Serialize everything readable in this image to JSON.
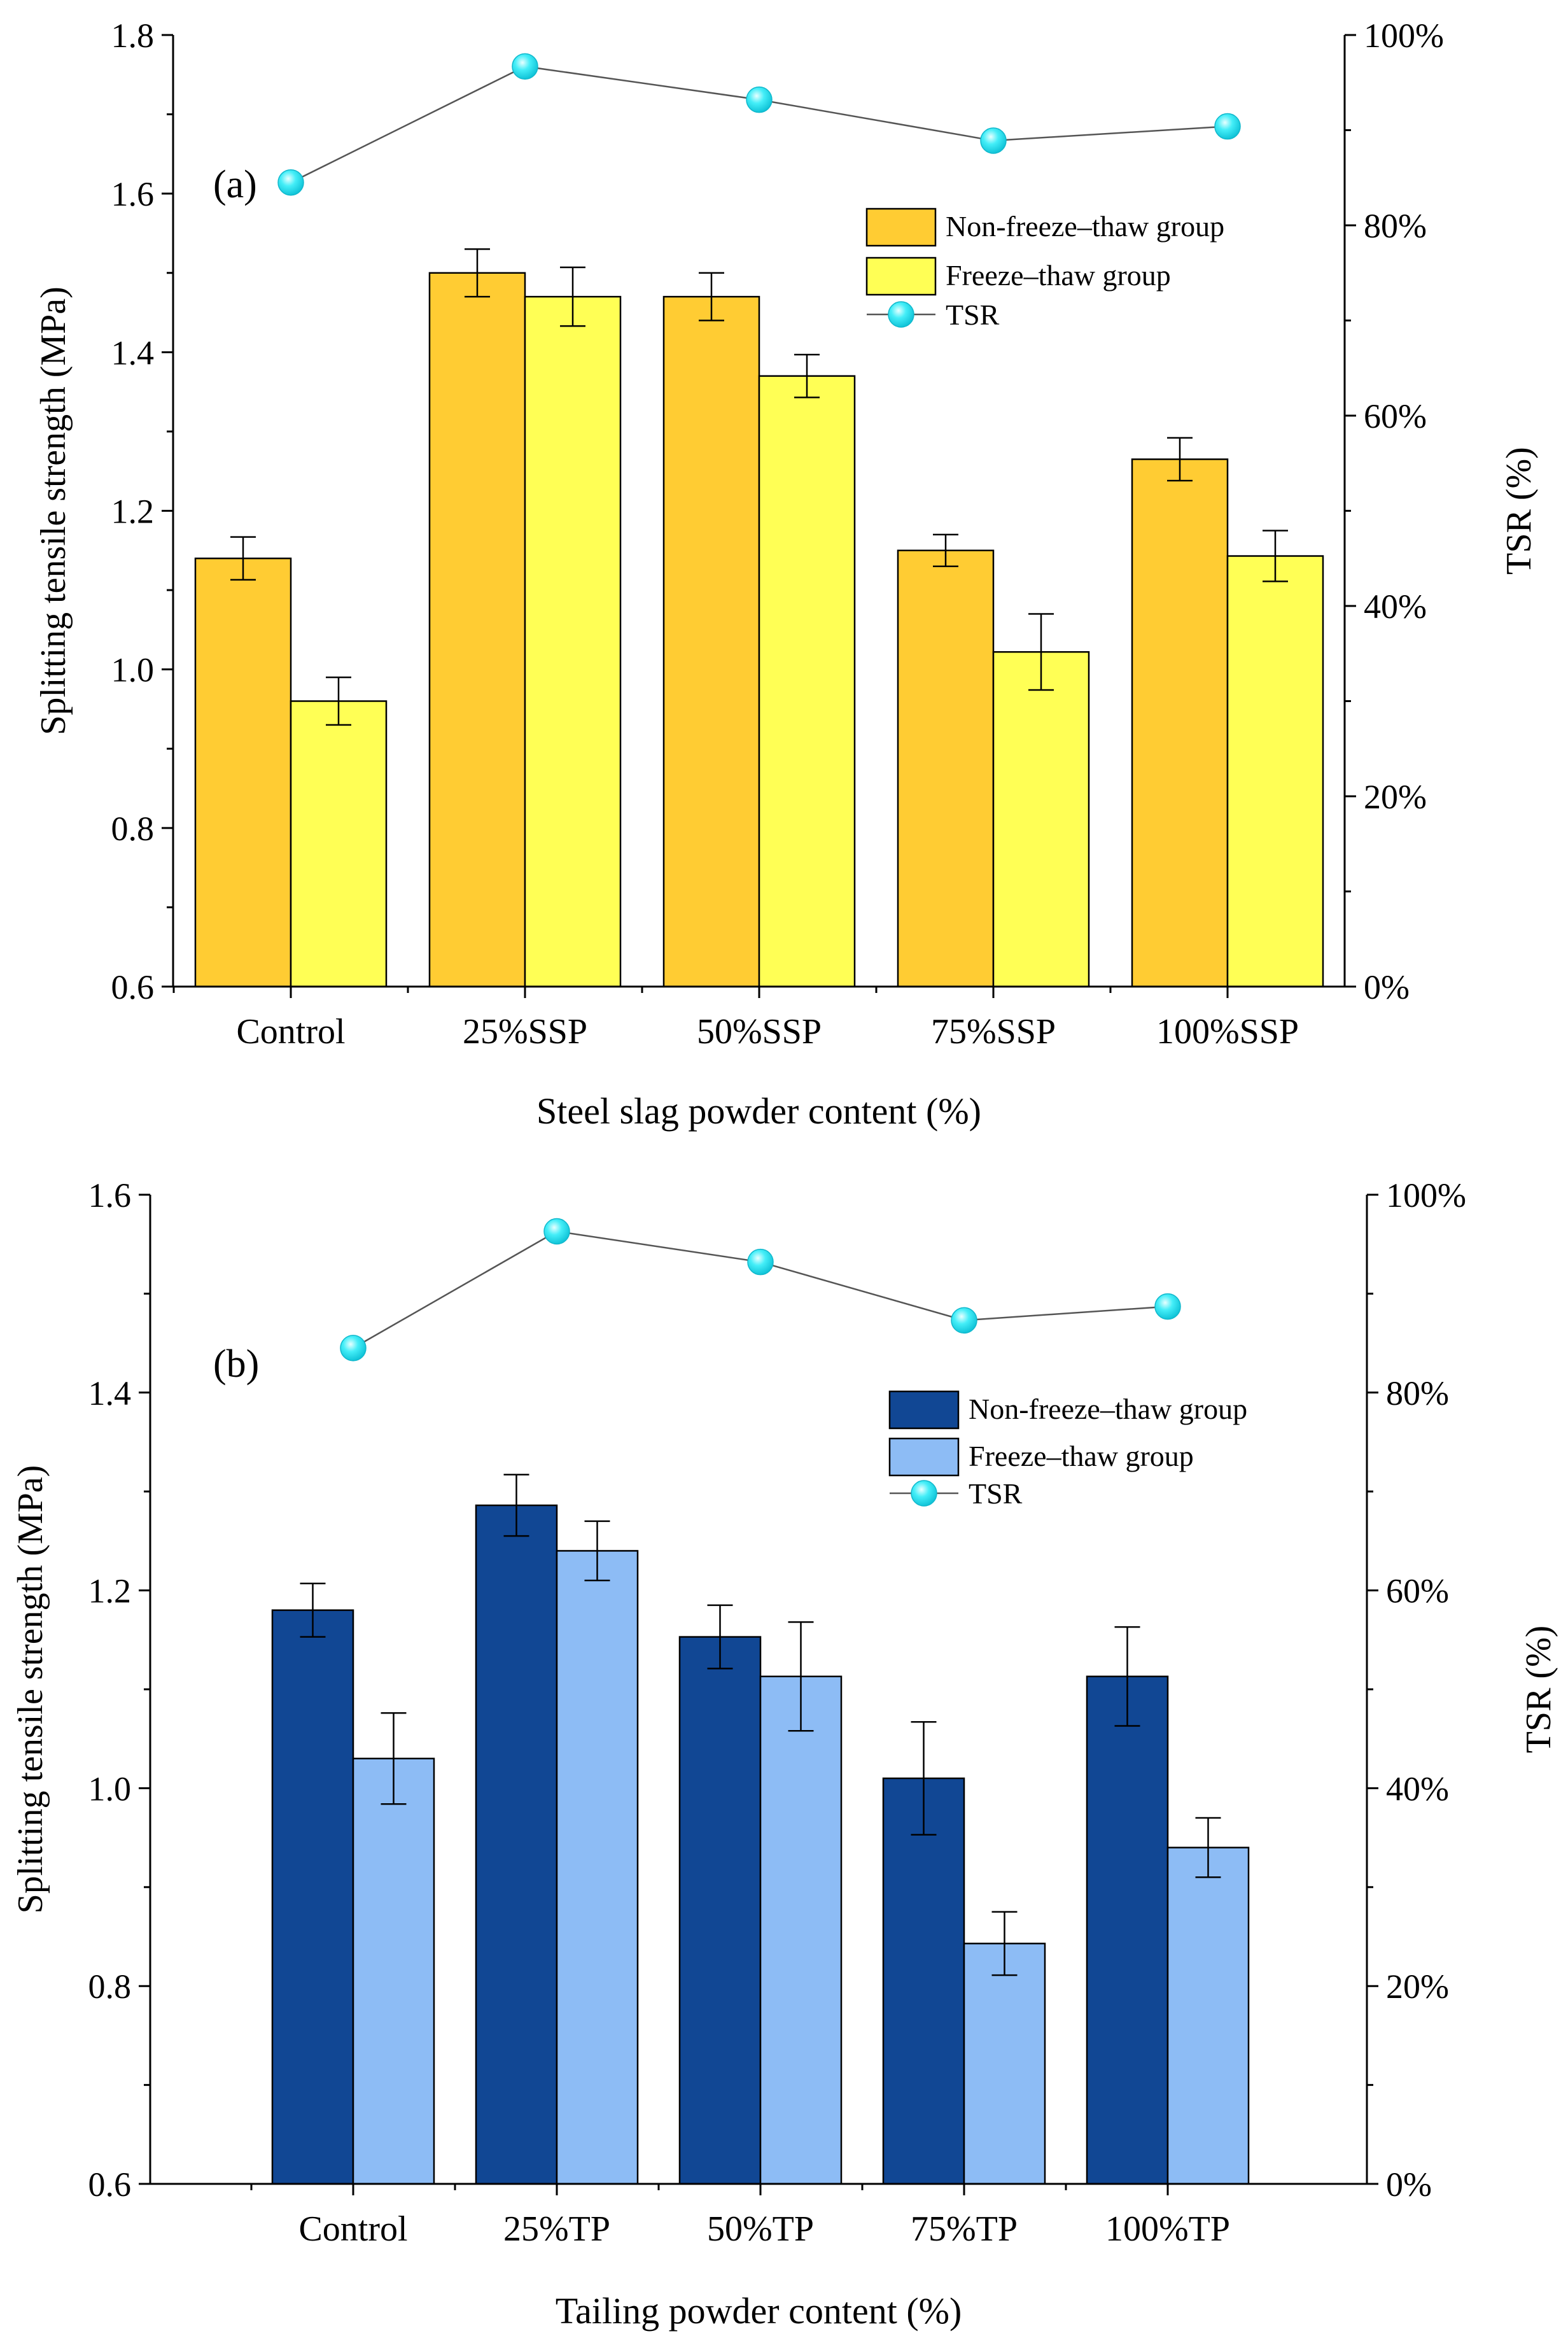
{
  "chart_data": [
    {
      "type": "bar",
      "panel_label": "(a)",
      "categories": [
        "Control",
        "25%SSP",
        "50%SSP",
        "75%SSP",
        "100%SSP"
      ],
      "xlabel": "Steel slag  powder content (%)",
      "ylabel": "Splitting tensile strength (MPa)",
      "y2label": "TSR (%)",
      "ylim": [
        0.6,
        1.8
      ],
      "yticks": [
        "0.6",
        "0.8",
        "1.0",
        "1.2",
        "1.4",
        "1.6",
        "1.8"
      ],
      "y2lim": [
        0,
        100
      ],
      "y2ticks": [
        "0%",
        "20%",
        "40%",
        "60%",
        "80%",
        "100%"
      ],
      "legend_position": "upper-right",
      "series": [
        {
          "name": "Non-freeze–thaw group",
          "kind": "bar",
          "color": "#FFCC33",
          "values": [
            1.14,
            1.5,
            1.47,
            1.15,
            1.265
          ],
          "errors": [
            0.027,
            0.03,
            0.03,
            0.02,
            0.027
          ]
        },
        {
          "name": "Freeze–thaw group",
          "kind": "bar",
          "color": "#FFFF55",
          "values": [
            0.96,
            1.47,
            1.37,
            1.022,
            1.143
          ],
          "errors": [
            0.03,
            0.037,
            0.027,
            0.048,
            0.032
          ]
        },
        {
          "name": "TSR",
          "kind": "line",
          "axis": "right",
          "color": "#22DDEE",
          "line_color": "#555555",
          "values": [
            84.5,
            96.7,
            93.2,
            88.9,
            90.4
          ]
        }
      ]
    },
    {
      "type": "bar",
      "panel_label": "(b)",
      "categories": [
        "Control",
        "25%TP",
        "50%TP",
        "75%TP",
        "100%TP"
      ],
      "xlabel": "Tailing  powder content (%)",
      "ylabel": "Splitting tensile strength (MPa)",
      "y2label": "TSR (%)",
      "ylim": [
        0.6,
        1.6
      ],
      "yticks": [
        "0.6",
        "0.8",
        "1.0",
        "1.2",
        "1.4",
        "1.6"
      ],
      "y2lim": [
        0,
        100
      ],
      "y2ticks": [
        "0%",
        "20%",
        "40%",
        "60%",
        "80%",
        "100%"
      ],
      "legend_position": "upper-right",
      "series": [
        {
          "name": "Non-freeze–thaw group",
          "kind": "bar",
          "color": "#114794",
          "values": [
            1.18,
            1.286,
            1.153,
            1.01,
            1.113
          ],
          "errors": [
            0.027,
            0.031,
            0.032,
            0.057,
            0.05
          ]
        },
        {
          "name": "Freeze–thaw group",
          "kind": "bar",
          "color": "#8DBCF5",
          "values": [
            1.03,
            1.24,
            1.113,
            0.843,
            0.94
          ],
          "errors": [
            0.046,
            0.03,
            0.055,
            0.032,
            0.03
          ]
        },
        {
          "name": "TSR",
          "kind": "line",
          "axis": "right",
          "color": "#22DDEE",
          "line_color": "#555555",
          "values": [
            84.5,
            96.3,
            93.2,
            87.3,
            88.7
          ]
        }
      ]
    }
  ]
}
